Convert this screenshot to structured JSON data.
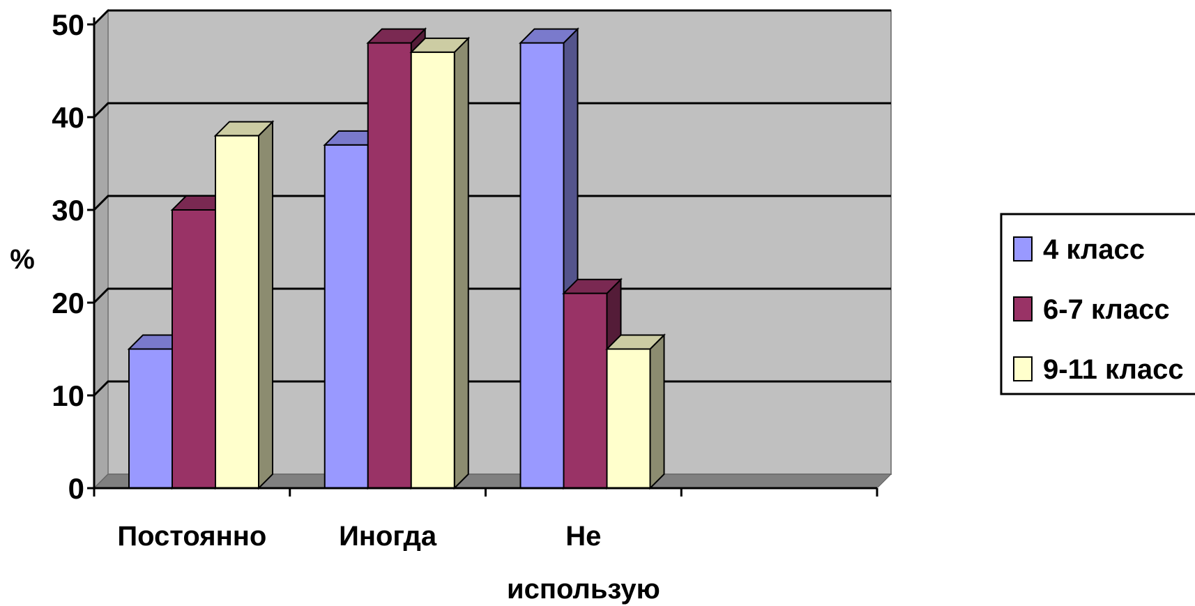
{
  "chart_data": {
    "type": "bar",
    "title": "",
    "ylabel": "%",
    "xlabel": "",
    "ylim": [
      0,
      50
    ],
    "yticks": [
      0,
      10,
      20,
      30,
      40,
      50
    ],
    "grid": true,
    "legend_position": "right",
    "categories": [
      [
        "Постоянно"
      ],
      [
        "Иногда"
      ],
      [
        "Не",
        "использую"
      ],
      [
        ""
      ]
    ],
    "series": [
      {
        "name": "4 класс",
        "color": "#9999FF",
        "values": [
          15,
          37,
          48,
          null
        ]
      },
      {
        "name": "6-7 класс",
        "color": "#993366",
        "values": [
          30,
          48,
          21,
          null
        ]
      },
      {
        "name": "9-11 класс",
        "color": "#FFFFCC",
        "values": [
          38,
          47,
          15,
          null
        ]
      }
    ]
  }
}
